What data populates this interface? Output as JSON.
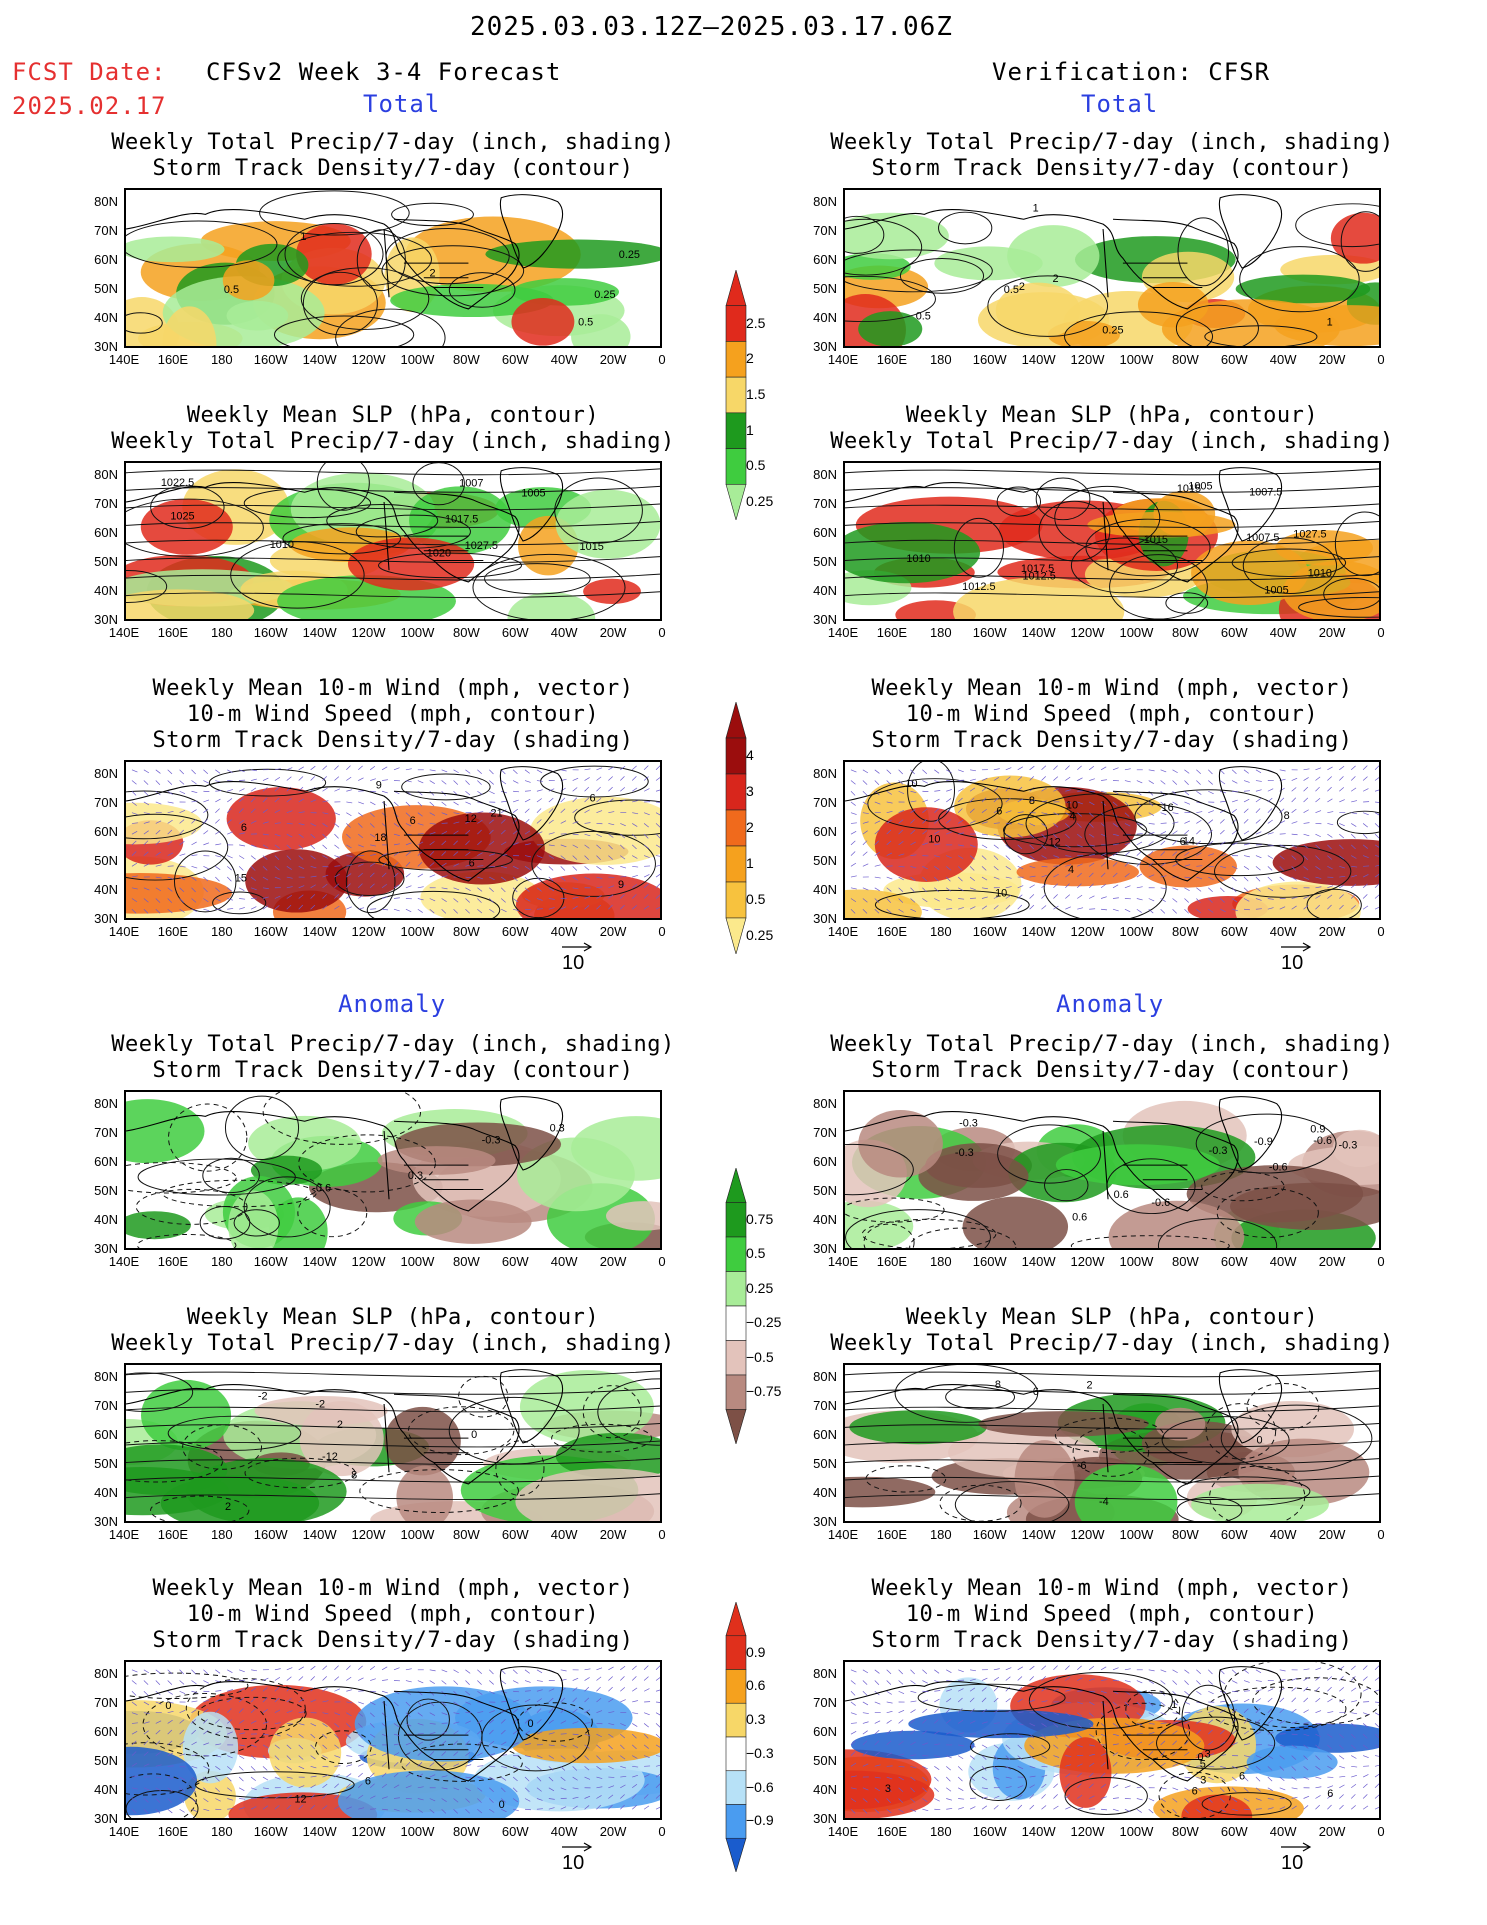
{
  "header": {
    "date_range": "2025.03.03.12Z–2025.03.17.06Z",
    "fcst_label": "FCST Date:",
    "fcst_date": "2025.02.17",
    "left_title": "CFSv2 Week 3-4 Forecast",
    "right_title": "Verification: CFSR"
  },
  "sections": {
    "total": "Total",
    "anomaly": "Anomaly"
  },
  "panel_titles": {
    "precip_storm": [
      "Weekly Total Precip/7-day (inch, shading)",
      "Storm Track Density/7-day (contour)"
    ],
    "slp_precip": [
      "Weekly Mean SLP (hPa, contour)",
      "Weekly Total Precip/7-day (inch, shading)"
    ],
    "wind_storm": [
      "Weekly Mean 10-m Wind (mph, vector)",
      "10-m Wind Speed (mph, contour)",
      "Storm Track Density/7-day (shading)"
    ]
  },
  "axes": {
    "lat_ticks": [
      "80N",
      "70N",
      "60N",
      "50N",
      "40N",
      "30N"
    ],
    "lon_ticks": [
      "140E",
      "160E",
      "180",
      "160W",
      "140W",
      "120W",
      "100W",
      "80W",
      "60W",
      "40W",
      "20W",
      "0"
    ]
  },
  "vector_scale": "10",
  "colorbars": {
    "precip_total": {
      "labels": [
        "2.5",
        "2",
        "1.5",
        "1",
        "0.5",
        "0.25"
      ],
      "colors": [
        "#e02a1c",
        "#f5a11e",
        "#f7d768",
        "#1e9a1e",
        "#3fcc3f",
        "#a8ec98"
      ]
    },
    "storm_total": {
      "labels": [
        "4",
        "3",
        "2",
        "1",
        "0.5",
        "0.25"
      ],
      "colors": [
        "#9b0d0d",
        "#d8261c",
        "#f06a1c",
        "#f5a11e",
        "#f7c23e",
        "#fbe98c"
      ]
    },
    "precip_anom": {
      "labels": [
        "0.75",
        "0.5",
        "0.25",
        "−0.25",
        "−0.5",
        "−0.75"
      ],
      "colors": [
        "#1e9a1e",
        "#3fcc3f",
        "#a8ec98",
        "#ffffff",
        "#e3c3bb",
        "#b88a80",
        "#7d5046"
      ]
    },
    "storm_anom": {
      "labels": [
        "0.9",
        "0.6",
        "0.3",
        "−0.3",
        "−0.6",
        "−0.9"
      ],
      "colors": [
        "#e0301c",
        "#f5a11e",
        "#f7d768",
        "#ffffff",
        "#b7e1f7",
        "#4a9cf0",
        "#1a5ccd"
      ]
    }
  },
  "contour_labels": {
    "fcst_precip": [
      "0.5",
      "1",
      "0.25",
      "0.5",
      "2",
      "0.25"
    ],
    "fcst_slp": [
      "1027.5",
      "1007",
      "1010",
      "1005",
      "1025",
      "1020",
      "1022.5",
      "1017.5",
      "1015"
    ],
    "fcst_wind": [
      "6",
      "9",
      "6",
      "12",
      "9",
      "15",
      "18",
      "21",
      "6",
      "6"
    ],
    "verif_precip": [
      "2",
      "1",
      "0.5",
      "2",
      "0.25",
      "0.5",
      "1"
    ],
    "verif_slp": [
      "1027.5",
      "1017.5",
      "1015",
      "1012.5",
      "1010",
      "1005",
      "1007.5",
      "1012.5",
      "1015",
      "1010",
      "1007.5",
      "1005"
    ],
    "verif_wind": [
      "4",
      "6",
      "8",
      "10",
      "12",
      "6",
      "10",
      "4",
      "10",
      "8",
      "10",
      "14",
      "16"
    ],
    "fcst_anom_precip": [
      "-0.3",
      "-0.6",
      "0.3",
      "0.3"
    ],
    "fcst_anom_slp": [
      "-2",
      "0",
      "2",
      "8",
      "-12",
      "-2",
      "2"
    ],
    "fcst_anom_wind": [
      "0",
      "0",
      "6",
      "12",
      "0"
    ],
    "verif_anom_precip": [
      "0.9",
      "-0.3",
      "-0.3",
      "-0.6",
      "-0.9",
      "-0.6",
      "-0.3",
      "0.6",
      "-0.3",
      "-0.6",
      "0.6"
    ],
    "verif_anom_slp": [
      "2",
      "6",
      "-4",
      "0",
      "8",
      "-6"
    ],
    "verif_anom_wind": [
      "6",
      "6",
      "6",
      "5",
      "3",
      "3",
      "1",
      "3",
      "0"
    ]
  }
}
